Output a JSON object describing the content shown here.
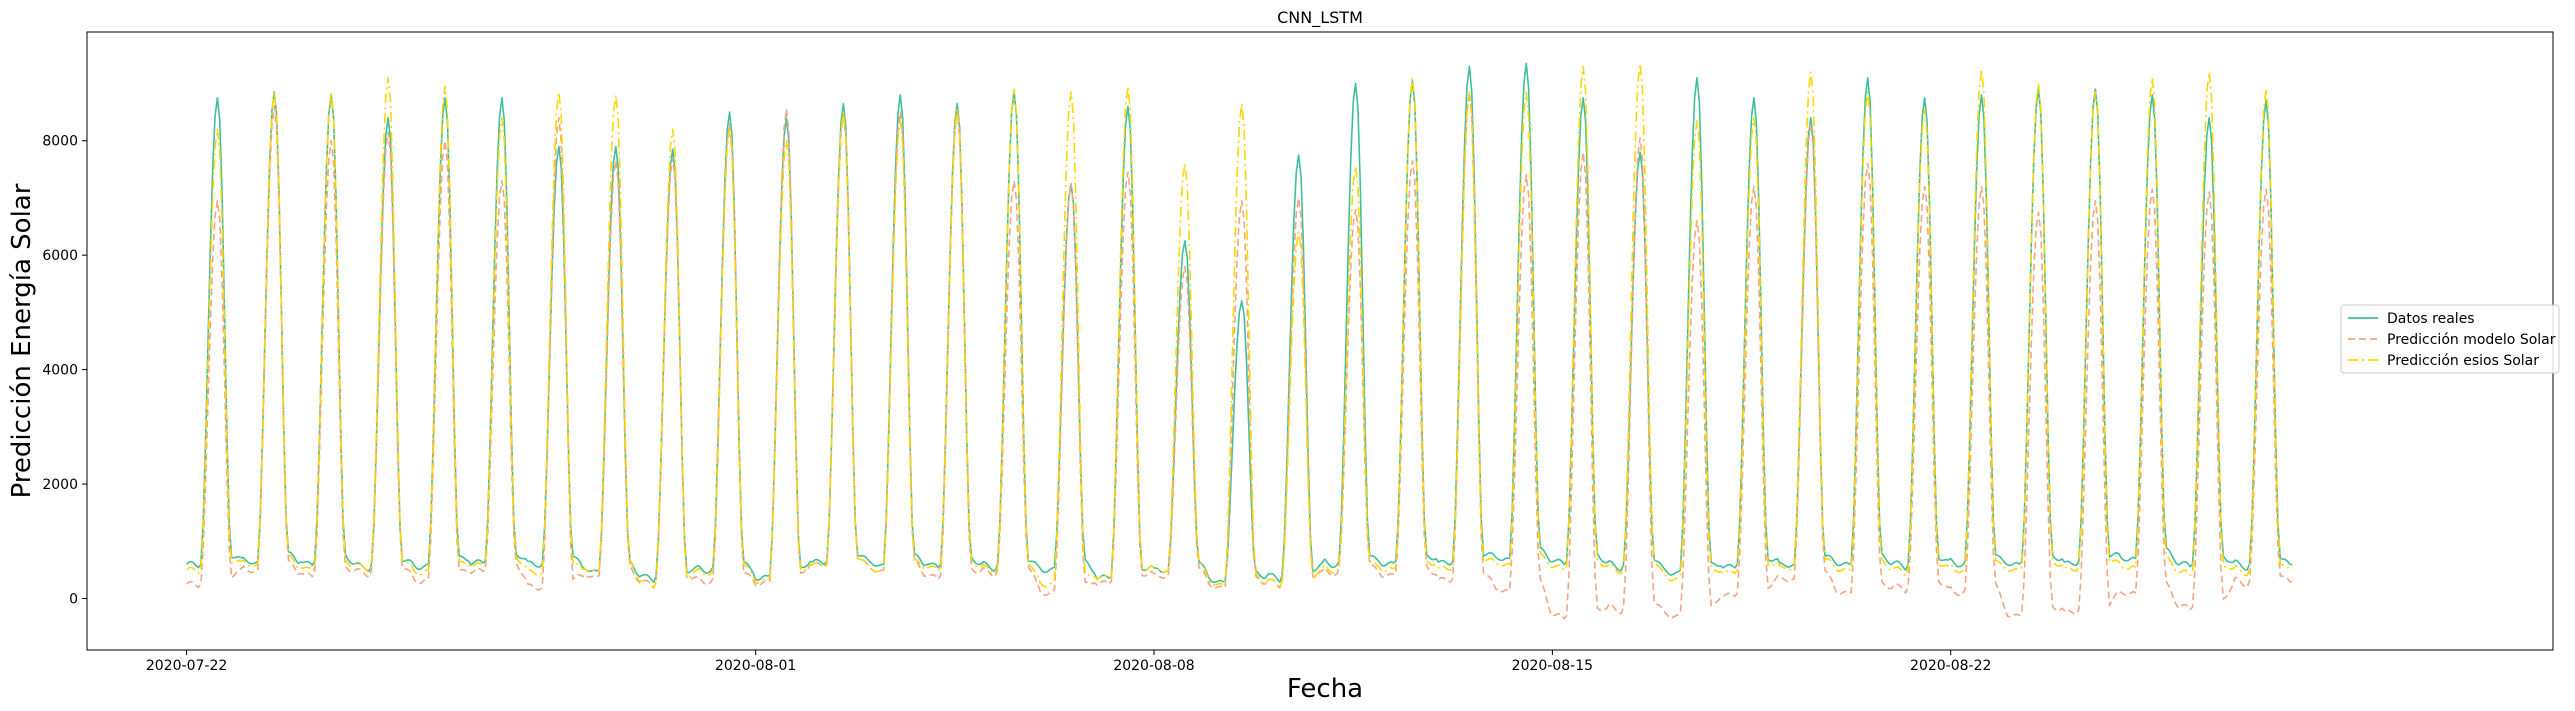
{
  "chart_data": {
    "type": "line",
    "title": "CNN_LSTM",
    "xlabel": "Fecha",
    "ylabel": "Predicción Energía Solar",
    "x_start": "2020-07-22T00:00",
    "x_end": "2020-08-28T00:00",
    "xlim": [
      "2020-07-20T06:00",
      "2020-09-01T14:00"
    ],
    "ylim": [
      -900,
      9900
    ],
    "x_ticks": [
      "2020-07-22",
      "2020-08-01",
      "2020-08-08",
      "2020-08-15",
      "2020-08-22"
    ],
    "y_ticks": [
      0,
      2000,
      4000,
      6000,
      8000
    ],
    "legend_position": "right",
    "grid": false,
    "series": [
      {
        "name": "Datos reales",
        "color": "#3fbf9f",
        "style": "solid",
        "daily_peak": [
          8750,
          8850,
          8800,
          8400,
          8750,
          8750,
          7900,
          7900,
          7850,
          8500,
          8400,
          8650,
          8800,
          8650,
          8850,
          7250,
          8600,
          6250,
          5200,
          7750,
          9000,
          9050,
          9300,
          9350,
          8750,
          7800,
          9100,
          8750,
          8400,
          9100,
          8750,
          8800,
          8900,
          8900,
          8800,
          8400,
          8700,
          8650,
          8650
        ],
        "daily_night": [
          600,
          650,
          650,
          600,
          600,
          650,
          600,
          500,
          400,
          550,
          400,
          650,
          600,
          600,
          600,
          550,
          400,
          500,
          300,
          400,
          650,
          650,
          650,
          700,
          650,
          600,
          500,
          600,
          600,
          600,
          600,
          650,
          650,
          650,
          700,
          600,
          600,
          600,
          500
        ]
      },
      {
        "name": "Predicción modelo Solar",
        "color": "#f4a582",
        "style": "dashed",
        "daily_peak": [
          6950,
          8600,
          8000,
          8150,
          8000,
          7300,
          8400,
          7650,
          7700,
          8300,
          8550,
          8450,
          8500,
          8500,
          7300,
          7250,
          7450,
          5800,
          6950,
          7000,
          6800,
          7650,
          8850,
          7400,
          7800,
          8050,
          6600,
          7200,
          8300,
          7600,
          7200,
          7200,
          6750,
          6950,
          7150,
          7100,
          7150,
          7050,
          8100
        ],
        "daily_night": [
          250,
          500,
          450,
          500,
          350,
          500,
          200,
          400,
          300,
          350,
          300,
          600,
          500,
          400,
          500,
          150,
          300,
          400,
          200,
          300,
          500,
          450,
          350,
          150,
          -300,
          -150,
          -250,
          100,
          350,
          100,
          200,
          150,
          -250,
          -200,
          100,
          -150,
          300,
          300,
          200
        ]
      },
      {
        "name": "Predicción esios Solar",
        "color": "#ffd700",
        "style": "dashdot",
        "daily_peak": [
          8200,
          8850,
          8850,
          9100,
          8950,
          8400,
          8850,
          8800,
          8200,
          8200,
          8000,
          8500,
          8350,
          8550,
          8900,
          8850,
          8950,
          7600,
          8650,
          6400,
          7550,
          9100,
          8850,
          8850,
          9300,
          9350,
          8350,
          8400,
          9200,
          8850,
          8550,
          9250,
          9000,
          8850,
          9100,
          9200,
          8900,
          8900,
          8850
        ],
        "daily_night": [
          500,
          600,
          550,
          600,
          500,
          600,
          450,
          500,
          300,
          500,
          350,
          600,
          500,
          550,
          550,
          300,
          400,
          500,
          250,
          300,
          550,
          550,
          550,
          600,
          550,
          550,
          400,
          500,
          550,
          500,
          500,
          550,
          550,
          550,
          550,
          450,
          500,
          500,
          400
        ]
      }
    ]
  }
}
